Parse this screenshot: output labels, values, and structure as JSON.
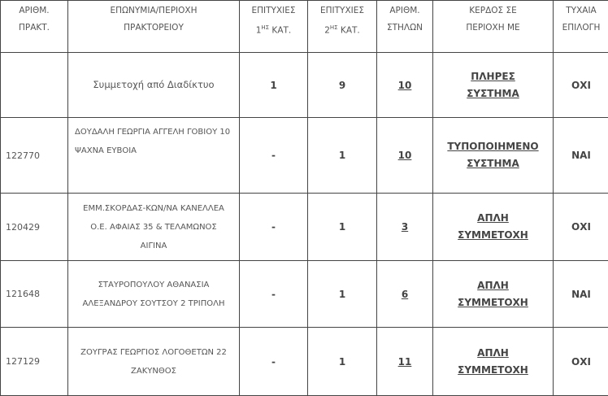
{
  "headers": {
    "practice_no": [
      "ΑΡΙΘΜ.",
      "ΠΡΑΚΤ."
    ],
    "name": [
      "ΕΠΩΝΥΜΙΑ/ΠΕΡΙΟΧΗ",
      "ΠΡΑΚΤΟΡΕΙΟΥ"
    ],
    "first": {
      "pre": "ΕΠΙΤΥΧΙΕΣ",
      "n": "1",
      "sup": "ΗΣ",
      "post": " ΚΑΤ."
    },
    "second": {
      "pre": "ΕΠΙΤΥΧΙΕΣ",
      "n": "2",
      "sup": "ΗΣ",
      "post": " ΚΑΤ."
    },
    "columns": [
      "ΑΡΙΘΜ.",
      "ΣΤΗΛΩΝ"
    ],
    "profit": [
      "ΚΕΡΔΟΣ ΣΕ",
      "ΠΕΡΙΟΧΗ ΜΕ"
    ],
    "random": [
      "ΤΥΧΑΙΑ",
      "ΕΠΙΛΟΓΗ"
    ]
  },
  "rows": [
    {
      "practice": "",
      "name": [
        "Συμμετοχή από Διαδίκτυο"
      ],
      "first": "1",
      "second": "9",
      "columns": "10",
      "profit": [
        "ΠΛΗΡΕΣ",
        "ΣΥΣΤΗΜΑ"
      ],
      "random": "ΟΧΙ"
    },
    {
      "practice": "122770",
      "name": [
        "ΔΟΥΔΑΛΗ ΓΕΩΡΓΙΑ  ΑΓΓΕΛΗ ΓΟΒΙΟΥ 10",
        "ΨΑΧΝΑ   ΕΥΒΟΙΑ"
      ],
      "first": "-",
      "second": "1",
      "columns": "10",
      "profit": [
        "ΤΥΠΟΠΟΙΗΜΕΝΟ",
        "ΣΥΣΤΗΜΑ"
      ],
      "random": "ΝΑΙ"
    },
    {
      "practice": "120429",
      "name": [
        "ΕΜΜ.ΣΚΟΡΔΑΣ-ΚΩΝ/ΝΑ ΚΑΝΕΛΛΕΑ",
        "Ο.Ε.  ΑΦΑΙΑΣ 35 & ΤΕΛΑΜΩΝΟΣ",
        "ΑΙΓΙΝΑ"
      ],
      "first": "-",
      "second": "1",
      "columns": "3",
      "profit": [
        "ΑΠΛΗ",
        "ΣΥΜΜΕΤΟΧΗ"
      ],
      "random": "ΟΧΙ"
    },
    {
      "practice": "121648",
      "name": [
        "ΣΤΑΥΡΟΠΟΥΛΟΥ ΑΘΑΝΑΣΙΑ",
        "ΑΛΕΞΑΝΔΡΟΥ ΣΟΥΤΣΟΥ   2 ΤΡΙΠΟΛΗ"
      ],
      "first": "-",
      "second": "1",
      "columns": "6",
      "profit": [
        "ΑΠΛΗ",
        "ΣΥΜΜΕΤΟΧΗ"
      ],
      "random": "ΝΑΙ"
    },
    {
      "practice": "127129",
      "name": [
        "ΖΟΥΓΡΑΣ ΓΕΩΡΓΙΟΣ   ΛΟΓΟΘΕΤΩΝ   22",
        "ΖΑΚΥΝΘΟΣ"
      ],
      "first": "-",
      "second": "1",
      "columns": "11",
      "profit": [
        "ΑΠΛΗ",
        "ΣΥΜΜΕΤΟΧΗ"
      ],
      "random": "ΟΧΙ"
    }
  ]
}
